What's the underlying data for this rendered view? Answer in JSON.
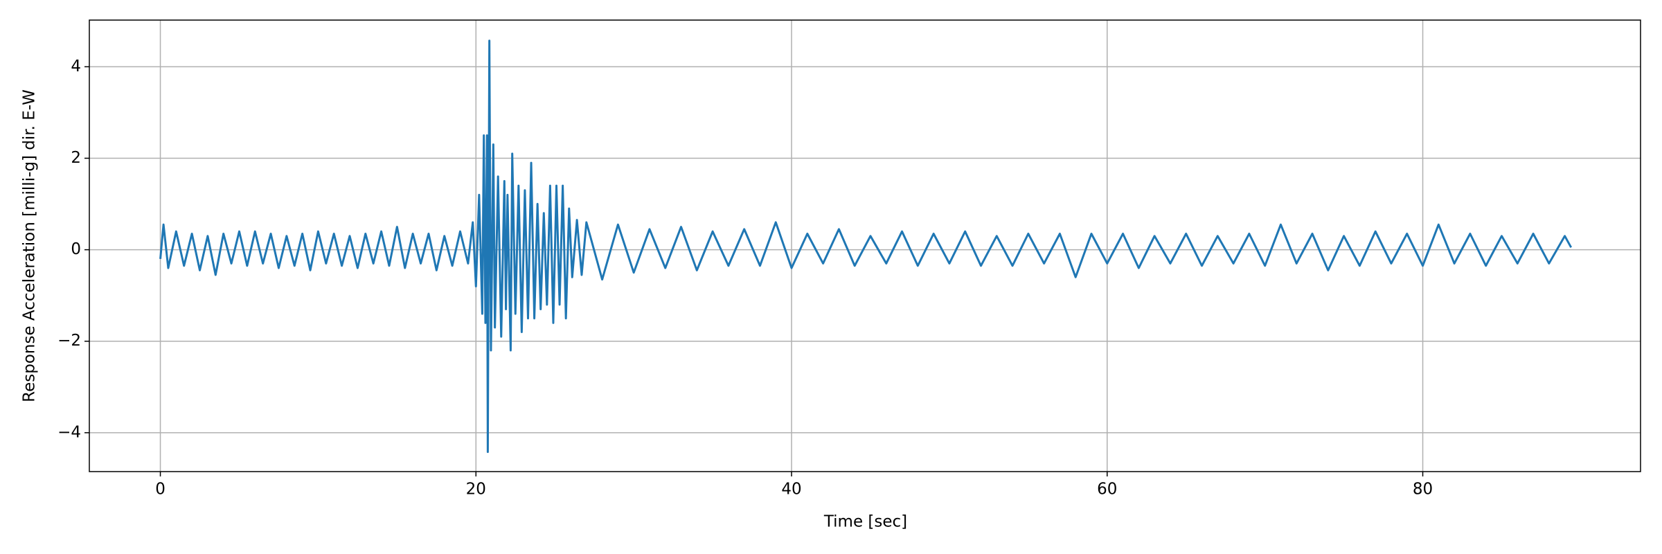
{
  "chart_data": {
    "type": "line",
    "xlabel": "Time [sec]",
    "ylabel": "Response Acceleration [milli-g] dir. E-W",
    "color": "#1f77b4",
    "grid": true,
    "xlim": [
      -4.5,
      93.8
    ],
    "ylim": [
      -4.85,
      5.02
    ],
    "xticks": [
      0,
      20,
      40,
      60,
      80
    ],
    "yticks": [
      {
        "value": -4,
        "label": "−4"
      },
      {
        "value": -2,
        "label": "−2"
      },
      0,
      2,
      4
    ],
    "x": [
      0,
      0.2,
      0.5,
      1,
      1.5,
      2,
      2.5,
      3,
      3.5,
      4,
      4.5,
      5,
      5.5,
      6,
      6.5,
      7,
      7.5,
      8,
      8.5,
      9,
      9.5,
      10,
      10.5,
      11,
      11.5,
      12,
      12.5,
      13,
      13.5,
      14,
      14.5,
      15,
      15.5,
      16,
      16.5,
      17,
      17.5,
      18,
      18.5,
      19,
      19.5,
      19.8,
      20,
      20.2,
      20.4,
      20.5,
      20.6,
      20.7,
      20.75,
      20.85,
      20.95,
      21.1,
      21.2,
      21.4,
      21.6,
      21.8,
      21.9,
      22,
      22.2,
      22.3,
      22.5,
      22.7,
      22.9,
      23.1,
      23.3,
      23.5,
      23.7,
      23.9,
      24.1,
      24.3,
      24.5,
      24.7,
      24.9,
      25.1,
      25.3,
      25.5,
      25.7,
      25.9,
      26.1,
      26.4,
      26.7,
      27,
      28,
      29,
      30,
      31,
      32,
      33,
      34,
      35,
      36,
      37,
      38,
      39,
      40,
      41,
      42,
      43,
      44,
      45,
      46,
      47,
      48,
      49,
      50,
      51,
      52,
      53,
      54,
      55,
      56,
      57,
      58,
      59,
      60,
      61,
      62,
      63,
      64,
      65,
      66,
      67,
      68,
      69,
      70,
      71,
      72,
      73,
      74,
      75,
      76,
      77,
      78,
      79,
      80,
      81,
      82,
      83,
      84,
      85,
      86,
      87,
      88,
      89,
      89.4
    ],
    "values": [
      -0.2,
      0.55,
      -0.4,
      0.4,
      -0.35,
      0.35,
      -0.45,
      0.3,
      -0.55,
      0.35,
      -0.3,
      0.4,
      -0.35,
      0.4,
      -0.3,
      0.35,
      -0.4,
      0.3,
      -0.35,
      0.35,
      -0.45,
      0.4,
      -0.3,
      0.35,
      -0.35,
      0.3,
      -0.4,
      0.35,
      -0.3,
      0.4,
      -0.35,
      0.5,
      -0.4,
      0.35,
      -0.3,
      0.35,
      -0.45,
      0.3,
      -0.35,
      0.4,
      -0.3,
      0.6,
      -0.8,
      1.2,
      -1.4,
      2.5,
      -1.6,
      2.5,
      -4.42,
      4.57,
      -2.2,
      2.3,
      -1.7,
      1.6,
      -1.9,
      1.5,
      -1.3,
      1.2,
      -2.2,
      2.1,
      -1.4,
      1.4,
      -1.8,
      1.3,
      -1.5,
      1.9,
      -1.5,
      1.0,
      -1.3,
      0.8,
      -1.2,
      1.4,
      -1.6,
      1.4,
      -1.2,
      1.4,
      -1.5,
      0.9,
      -0.6,
      0.65,
      -0.55,
      0.6,
      -0.65,
      0.55,
      -0.5,
      0.45,
      -0.4,
      0.5,
      -0.45,
      0.4,
      -0.35,
      0.45,
      -0.35,
      0.6,
      -0.4,
      0.35,
      -0.3,
      0.45,
      -0.35,
      0.3,
      -0.3,
      0.4,
      -0.35,
      0.35,
      -0.3,
      0.4,
      -0.35,
      0.3,
      -0.35,
      0.35,
      -0.3,
      0.35,
      -0.6,
      0.35,
      -0.3,
      0.35,
      -0.4,
      0.3,
      -0.3,
      0.35,
      -0.35,
      0.3,
      -0.3,
      0.35,
      -0.35,
      0.55,
      -0.3,
      0.35,
      -0.45,
      0.3,
      -0.35,
      0.4,
      -0.3,
      0.35,
      -0.35,
      0.55,
      -0.3,
      0.35,
      -0.35,
      0.3,
      -0.3,
      0.35,
      -0.3,
      0.3,
      0.05
    ]
  }
}
